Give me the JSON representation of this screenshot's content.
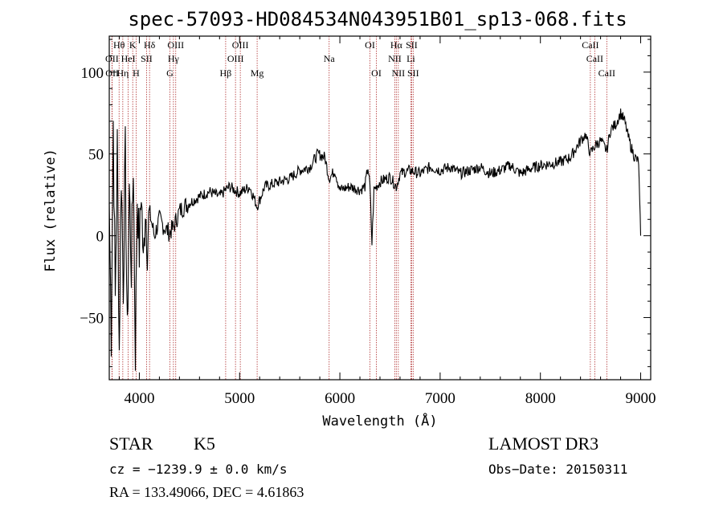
{
  "chart_data": {
    "type": "line",
    "title": "spec-57093-HD084534N043951B01_sp13-068.fits",
    "xlabel": "Wavelength (Å)",
    "ylabel": "Flux (relative)",
    "xlim": [
      3700,
      9100
    ],
    "ylim": [
      -88,
      122
    ],
    "x_ticks": [
      4000,
      5000,
      6000,
      7000,
      8000,
      9000
    ],
    "y_ticks": [
      -50,
      0,
      50,
      100
    ],
    "series": [
      {
        "name": "spectrum",
        "x": [
          3700,
          3720,
          3740,
          3760,
          3780,
          3800,
          3820,
          3840,
          3860,
          3880,
          3900,
          3920,
          3940,
          3960,
          3980,
          4000,
          4020,
          4040,
          4060,
          4080,
          4100,
          4150,
          4200,
          4250,
          4300,
          4340,
          4400,
          4450,
          4500,
          4600,
          4700,
          4800,
          4862,
          4900,
          5000,
          5100,
          5175,
          5250,
          5400,
          5500,
          5600,
          5700,
          5780,
          5850,
          5893,
          5950,
          6000,
          6100,
          6200,
          6250,
          6280,
          6300,
          6320,
          6340,
          6400,
          6500,
          6563,
          6600,
          6700,
          6800,
          6900,
          7000,
          7100,
          7200,
          7300,
          7400,
          7500,
          7600,
          7700,
          7800,
          7900,
          8000,
          8100,
          8200,
          8300,
          8400,
          8450,
          8498,
          8542,
          8600,
          8662,
          8700,
          8750,
          8800,
          8840,
          8870,
          8900,
          8940,
          8980,
          8990,
          9000
        ],
        "values": [
          20,
          -60,
          70,
          -40,
          55,
          -70,
          40,
          -30,
          50,
          -65,
          30,
          -20,
          45,
          -70,
          25,
          -10,
          30,
          -20,
          20,
          -5,
          15,
          0,
          10,
          5,
          2,
          5,
          15,
          18,
          20,
          24,
          27,
          24,
          28,
          30,
          26,
          30,
          18,
          30,
          33,
          35,
          40,
          42,
          50,
          48,
          35,
          40,
          28,
          30,
          28,
          30,
          42,
          30,
          -5,
          28,
          33,
          36,
          30,
          38,
          40,
          38,
          42,
          40,
          42,
          38,
          40,
          42,
          38,
          40,
          43,
          38,
          41,
          43,
          44,
          45,
          48,
          58,
          62,
          50,
          55,
          58,
          52,
          65,
          68,
          75,
          70,
          62,
          55,
          48,
          45,
          20,
          0
        ]
      }
    ],
    "spectral_lines": [
      {
        "label": "Hθ",
        "wavelength": 3798,
        "row": 1
      },
      {
        "label": "K",
        "wavelength": 3934,
        "row": 1
      },
      {
        "label": "Hδ",
        "wavelength": 4102,
        "row": 1
      },
      {
        "label": "OIII",
        "wavelength": 4363,
        "row": 1
      },
      {
        "label": "OIII",
        "wavelength": 5007,
        "row": 1
      },
      {
        "label": "OI",
        "wavelength": 6300,
        "row": 1
      },
      {
        "label": "Hα",
        "wavelength": 6563,
        "row": 1
      },
      {
        "label": "SII",
        "wavelength": 6716,
        "row": 1
      },
      {
        "label": "CaII",
        "wavelength": 8498,
        "row": 1
      },
      {
        "label": "OII",
        "wavelength": 3727,
        "row": 2
      },
      {
        "label": "HeI",
        "wavelength": 3889,
        "row": 2
      },
      {
        "label": "SII",
        "wavelength": 4072,
        "row": 2
      },
      {
        "label": "Hγ",
        "wavelength": 4340,
        "row": 2
      },
      {
        "label": "OIII",
        "wavelength": 4959,
        "row": 2
      },
      {
        "label": "Na",
        "wavelength": 5893,
        "row": 2
      },
      {
        "label": "NII",
        "wavelength": 6548,
        "row": 2
      },
      {
        "label": "Li",
        "wavelength": 6708,
        "row": 2
      },
      {
        "label": "CaII",
        "wavelength": 8542,
        "row": 2
      },
      {
        "label": "OII",
        "wavelength": 3729,
        "row": 3
      },
      {
        "label": "Hη",
        "wavelength": 3835,
        "row": 3
      },
      {
        "label": "H",
        "wavelength": 3968,
        "row": 3
      },
      {
        "label": "G",
        "wavelength": 4305,
        "row": 3
      },
      {
        "label": "Hβ",
        "wavelength": 4861,
        "row": 3
      },
      {
        "label": "Mg",
        "wavelength": 5175,
        "row": 3
      },
      {
        "label": "OI",
        "wavelength": 6364,
        "row": 3
      },
      {
        "label": "NII",
        "wavelength": 6583,
        "row": 3
      },
      {
        "label": "SII",
        "wavelength": 6731,
        "row": 3
      },
      {
        "label": "CaII",
        "wavelength": 8662,
        "row": 3
      }
    ]
  },
  "footer": {
    "object_class": "STAR",
    "subclass": "K5",
    "survey": "LAMOST DR3",
    "velocity": "cz = −1239.9 ± 0.0 km/s",
    "obs_date": "Obs−Date: 20150311",
    "coords": "RA = 133.49066, DEC =    4.61863"
  },
  "colors": {
    "spectrum": "#000000",
    "line_marker": "#b03030"
  }
}
